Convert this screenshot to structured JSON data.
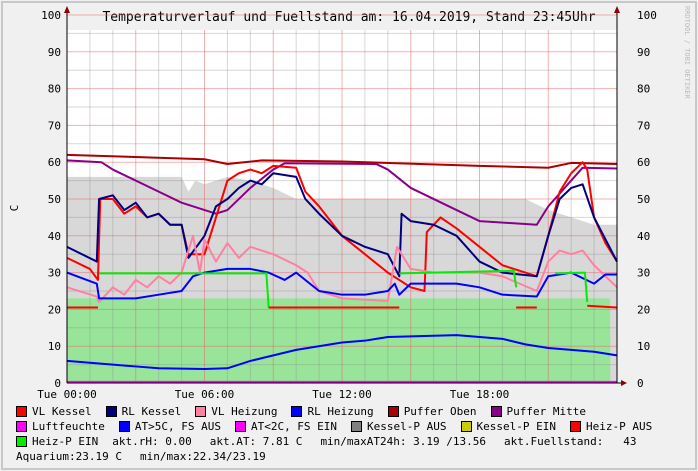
{
  "chart_data": {
    "type": "line",
    "title": "Temperaturverlauf und Fuellstand am: 16.04.2019, Stand 23:45Uhr",
    "ylabel": "C",
    "watermark": "RRDTOOL / TOBI OETIKER",
    "ylim": [
      0,
      100
    ],
    "xlim_hours": [
      0,
      24
    ],
    "y_ticks": [
      "0",
      "10",
      "20",
      "30",
      "40",
      "50",
      "60",
      "70",
      "80",
      "90",
      "100"
    ],
    "x_ticks": [
      {
        "h": 0,
        "label": "Tue 00:00"
      },
      {
        "h": 6,
        "label": "Tue 06:00"
      },
      {
        "h": 12,
        "label": "Tue 12:00"
      },
      {
        "h": 18,
        "label": "Tue 18:00"
      }
    ],
    "grid": true,
    "legend_position": "bottom",
    "areas": [
      {
        "name": "Kessel-P AUS",
        "color": "#d8d8d8",
        "points": [
          [
            0,
            56
          ],
          [
            5,
            56
          ],
          [
            5.3,
            52
          ],
          [
            5.6,
            55
          ],
          [
            6,
            54
          ],
          [
            7,
            56
          ],
          [
            8,
            55
          ],
          [
            9,
            53
          ],
          [
            10,
            50
          ],
          [
            14,
            50
          ],
          [
            18,
            50
          ],
          [
            20,
            50
          ],
          [
            21,
            47
          ],
          [
            22,
            45
          ],
          [
            23,
            43
          ],
          [
            24,
            43
          ]
        ]
      },
      {
        "name": "Heiz-P EIN area",
        "color": "#98e498",
        "points": [
          [
            0,
            23
          ],
          [
            14,
            23
          ],
          [
            23.7,
            23
          ],
          [
            23.71,
            0
          ]
        ]
      }
    ],
    "series": [
      {
        "name": "Puffer Oben",
        "color": "#aa0000",
        "points": [
          [
            0,
            62
          ],
          [
            6,
            60.8
          ],
          [
            7,
            59.5
          ],
          [
            8.5,
            60.5
          ],
          [
            12,
            60.2
          ],
          [
            18,
            59
          ],
          [
            21,
            58.5
          ],
          [
            22,
            59.8
          ],
          [
            24,
            59.5
          ]
        ]
      },
      {
        "name": "Puffer Mitte",
        "color": "#880088",
        "points": [
          [
            0,
            60.5
          ],
          [
            1.5,
            60
          ],
          [
            2,
            58
          ],
          [
            4,
            52
          ],
          [
            5,
            49
          ],
          [
            6.5,
            46
          ],
          [
            7,
            47
          ],
          [
            8,
            53
          ],
          [
            9,
            58
          ],
          [
            9.5,
            59.7
          ],
          [
            13.5,
            59.5
          ],
          [
            14,
            58
          ],
          [
            15,
            53
          ],
          [
            17,
            47
          ],
          [
            18,
            44
          ],
          [
            20.5,
            43
          ],
          [
            21,
            48
          ],
          [
            22,
            55
          ],
          [
            22.5,
            58.5
          ],
          [
            24,
            58.3
          ]
        ]
      },
      {
        "name": "VL Kessel",
        "color": "#ff0000",
        "points": [
          [
            0,
            34
          ],
          [
            1,
            31
          ],
          [
            1.35,
            28
          ],
          [
            1.45,
            50
          ],
          [
            2,
            50
          ],
          [
            2.5,
            46
          ],
          [
            3,
            48
          ],
          [
            3.5,
            45
          ],
          [
            4,
            46
          ],
          [
            4.5,
            43
          ],
          [
            5,
            43
          ],
          [
            5.3,
            35
          ],
          [
            6,
            35
          ],
          [
            6.5,
            45
          ],
          [
            7,
            55
          ],
          [
            7.5,
            57
          ],
          [
            8,
            58
          ],
          [
            8.5,
            57
          ],
          [
            9,
            59
          ],
          [
            10,
            58.5
          ],
          [
            10.4,
            52
          ],
          [
            11,
            48
          ],
          [
            12,
            40
          ],
          [
            13,
            35
          ],
          [
            14,
            30
          ],
          [
            15,
            26
          ],
          [
            15.6,
            25
          ],
          [
            15.7,
            41
          ],
          [
            16.3,
            45
          ],
          [
            17,
            42
          ],
          [
            18,
            37
          ],
          [
            19,
            32
          ],
          [
            20,
            30
          ],
          [
            20.5,
            29
          ],
          [
            21,
            40
          ],
          [
            21.5,
            52
          ],
          [
            22,
            57
          ],
          [
            22.5,
            60
          ],
          [
            22.7,
            58
          ],
          [
            23,
            45
          ],
          [
            23.5,
            38
          ],
          [
            24,
            33
          ]
        ]
      },
      {
        "name": "RL Kessel",
        "color": "#000080",
        "points": [
          [
            0,
            37
          ],
          [
            1.3,
            33
          ],
          [
            1.4,
            50
          ],
          [
            2,
            51
          ],
          [
            2.5,
            47
          ],
          [
            3,
            49
          ],
          [
            3.5,
            45
          ],
          [
            4,
            46
          ],
          [
            4.5,
            43
          ],
          [
            5,
            43
          ],
          [
            5.3,
            34
          ],
          [
            6,
            40
          ],
          [
            6.5,
            48
          ],
          [
            7,
            50
          ],
          [
            7.5,
            53
          ],
          [
            8,
            55
          ],
          [
            8.5,
            54
          ],
          [
            9,
            57
          ],
          [
            10,
            56
          ],
          [
            10.4,
            50
          ],
          [
            11,
            46
          ],
          [
            12,
            40
          ],
          [
            13,
            37
          ],
          [
            14,
            35
          ],
          [
            14.5,
            29
          ],
          [
            14.6,
            46
          ],
          [
            15,
            44
          ],
          [
            16,
            43
          ],
          [
            17,
            40
          ],
          [
            18,
            33
          ],
          [
            19,
            30
          ],
          [
            20.5,
            29
          ],
          [
            21,
            40
          ],
          [
            21.5,
            50
          ],
          [
            22,
            53
          ],
          [
            22.5,
            54
          ],
          [
            23,
            45
          ],
          [
            24,
            33
          ]
        ]
      },
      {
        "name": "VL Heizung",
        "color": "#ff80a0",
        "points": [
          [
            0,
            26
          ],
          [
            1.3,
            23.5
          ],
          [
            1.4,
            22
          ],
          [
            2,
            26
          ],
          [
            2.5,
            24
          ],
          [
            3,
            28
          ],
          [
            3.5,
            26
          ],
          [
            4,
            29
          ],
          [
            4.5,
            27
          ],
          [
            5,
            30
          ],
          [
            5.5,
            40
          ],
          [
            5.8,
            30
          ],
          [
            6,
            39
          ],
          [
            6.5,
            33
          ],
          [
            7,
            38
          ],
          [
            7.5,
            34
          ],
          [
            8,
            37
          ],
          [
            9,
            35
          ],
          [
            10,
            32
          ],
          [
            10.5,
            30
          ],
          [
            11,
            25
          ],
          [
            12,
            23
          ],
          [
            14,
            22.3
          ],
          [
            14.4,
            37
          ],
          [
            15,
            31
          ],
          [
            16,
            30
          ],
          [
            17,
            30
          ],
          [
            18,
            30
          ],
          [
            19,
            29
          ],
          [
            20.5,
            25
          ],
          [
            21,
            33
          ],
          [
            21.5,
            36
          ],
          [
            22,
            35
          ],
          [
            22.5,
            36
          ],
          [
            23,
            32
          ],
          [
            24,
            26
          ]
        ]
      },
      {
        "name": "RL Heizung",
        "color": "#0000ff",
        "points": [
          [
            0,
            30
          ],
          [
            1.3,
            27
          ],
          [
            1.4,
            23
          ],
          [
            3,
            23
          ],
          [
            4,
            24
          ],
          [
            5,
            25
          ],
          [
            5.5,
            29
          ],
          [
            6,
            30
          ],
          [
            7,
            31
          ],
          [
            8,
            31
          ],
          [
            8.8,
            30
          ],
          [
            9.5,
            28
          ],
          [
            10,
            30
          ],
          [
            11,
            25
          ],
          [
            12,
            24
          ],
          [
            13,
            24
          ],
          [
            14,
            25
          ],
          [
            14.3,
            27
          ],
          [
            14.5,
            24
          ],
          [
            15,
            27
          ],
          [
            17,
            27
          ],
          [
            18,
            26
          ],
          [
            19,
            24
          ],
          [
            20.5,
            23.5
          ],
          [
            21,
            29
          ],
          [
            22,
            30
          ],
          [
            23,
            27
          ],
          [
            23.5,
            29.5
          ],
          [
            24,
            29.5
          ]
        ]
      },
      {
        "name": "AT>5C, FS AUS",
        "color": "#0000ff",
        "points": [
          [
            0,
            6
          ],
          [
            2,
            5
          ],
          [
            3,
            4.5
          ],
          [
            4,
            4
          ],
          [
            6,
            3.8
          ],
          [
            7,
            4
          ],
          [
            8,
            6
          ],
          [
            10,
            9
          ],
          [
            12,
            11
          ],
          [
            13,
            11.5
          ],
          [
            14,
            12.5
          ],
          [
            17,
            13
          ],
          [
            18,
            12.5
          ],
          [
            19,
            12
          ],
          [
            20,
            10.5
          ],
          [
            21,
            9.5
          ],
          [
            23,
            8.5
          ],
          [
            24,
            7.5
          ]
        ]
      },
      {
        "name": "Heiz-P EIN",
        "color": "#00ee00",
        "points": [
          [
            1.4,
            29.8
          ],
          [
            8.7,
            29.8
          ],
          [
            8.8,
            20.5
          ]
        ]
      },
      {
        "name": "Heiz-P EIN",
        "color": "#00ee00",
        "points": [
          [
            14.5,
            29.8
          ],
          [
            19.5,
            30.5
          ],
          [
            19.6,
            26
          ]
        ]
      },
      {
        "name": "Heiz-P EIN",
        "color": "#00ee00",
        "points": [
          [
            21.3,
            29.8
          ],
          [
            22.6,
            30
          ],
          [
            22.7,
            22
          ]
        ]
      },
      {
        "name": "Heiz-P AUS",
        "color": "#ff0000",
        "points": [
          [
            0,
            20.5
          ],
          [
            1.35,
            20.5
          ]
        ]
      },
      {
        "name": "Heiz-P AUS",
        "color": "#ff0000",
        "points": [
          [
            8.8,
            20.5
          ],
          [
            14.5,
            20.5
          ]
        ]
      },
      {
        "name": "Heiz-P AUS",
        "color": "#ff0000",
        "points": [
          [
            19.6,
            20.5
          ],
          [
            20.5,
            20.5
          ]
        ]
      },
      {
        "name": "Heiz-P AUS",
        "color": "#ff0000",
        "points": [
          [
            22.7,
            21
          ],
          [
            24,
            20.5
          ]
        ]
      },
      {
        "name": "Luftfeuchte",
        "color": "#ff00ff",
        "points": [
          [
            0,
            0.3
          ],
          [
            24,
            0.3
          ]
        ]
      }
    ]
  },
  "legend": [
    [
      {
        "label": "VL Kessel",
        "color": "#ff0000"
      },
      {
        "label": "RL Kessel",
        "color": "#000080"
      },
      {
        "label": "VL Heizung",
        "color": "#ff80a0"
      },
      {
        "label": "RL Heizung",
        "color": "#0000ff"
      },
      {
        "label": "Puffer Oben",
        "color": "#aa0000"
      },
      {
        "label": "Puffer Mitte",
        "color": "#880088"
      }
    ],
    [
      {
        "label": "Luftfeuchte",
        "color": "#ff00ff"
      },
      {
        "label": "AT>5C, FS AUS",
        "color": "#0000ff"
      },
      {
        "label": "AT<2C, FS EIN",
        "color": "#ff00ff"
      },
      {
        "label": "Kessel-P AUS",
        "color": "#808080"
      },
      {
        "label": "Kessel-P EIN",
        "color": "#cccc00"
      },
      {
        "label": "Heiz-P AUS",
        "color": "#ff0000"
      }
    ],
    [
      {
        "label": "Heiz-P EIN",
        "color": "#00ee00"
      }
    ]
  ],
  "stats": {
    "rh": "akt.rH: 0.00",
    "at": "akt.AT: 7.81 C",
    "minmax_at": "min/maxAT24h: 3.19 /13.56",
    "fuellstand": "akt.Fuellstand:   43",
    "aquarium": "Aquarium:23.19 C",
    "aquarium_minmax": "min/max:22.34/23.19"
  }
}
